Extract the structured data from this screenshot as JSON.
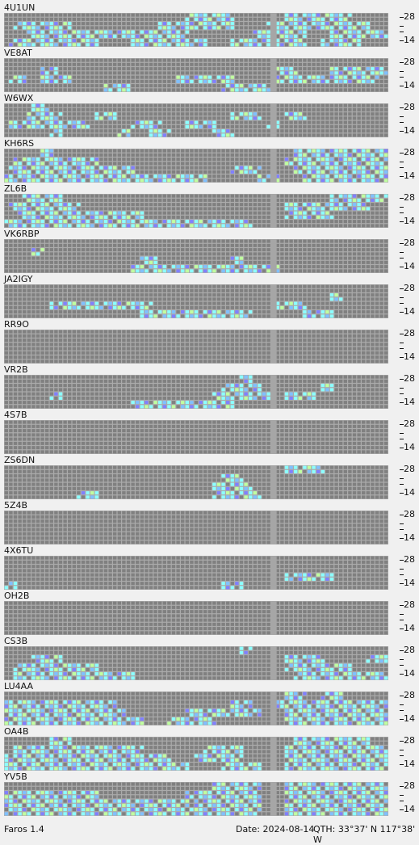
{
  "app_name": "Faros 1.4",
  "status": {
    "date_label": "Date:",
    "date_value": "2024-08-14",
    "qth_label": "QTH:",
    "qth_lat": "33°37' N",
    "qth_lon": "117°38' W"
  },
  "band_labels": {
    "top": "28",
    "bottom": "14"
  },
  "colors": {
    "empty_cell": "#808080",
    "gridline": "#ababab",
    "current_time_column": "#a6a6a6",
    "signal_strong": "#8cffff",
    "signal_medium": "#80c0ff",
    "signal_weak": "#8080ff",
    "signal_peak": "#c0ffa0"
  },
  "beacons": [
    {
      "callsign": "4U1UN",
      "activity": {
        "28": [
          [
            40,
            50
          ],
          [
            62,
            76
          ]
        ],
        "21": [
          [
            2,
            14
          ],
          [
            34,
            50
          ],
          [
            58,
            80
          ]
        ],
        "18": [
          [
            5,
            40
          ],
          [
            55,
            66
          ],
          [
            72,
            84
          ]
        ],
        "14": [
          [
            1,
            20
          ],
          [
            28,
            44
          ],
          [
            50,
            66
          ],
          [
            70,
            78
          ]
        ]
      }
    },
    {
      "callsign": "VE8AT",
      "activity": {
        "28": [],
        "21": [
          [
            8,
            11
          ],
          [
            60,
            64
          ],
          [
            72,
            84
          ]
        ],
        "18": [
          [
            1,
            4
          ],
          [
            8,
            14
          ],
          [
            38,
            50
          ],
          [
            60,
            82
          ]
        ],
        "14": [
          [
            22,
            27
          ],
          [
            48,
            58
          ]
        ]
      }
    },
    {
      "callsign": "W6WX",
      "activity": {
        "28": [
          [
            6,
            9
          ]
        ],
        "21": [
          [
            5,
            12
          ],
          [
            20,
            24
          ],
          [
            50,
            56
          ],
          [
            62,
            66
          ]
        ],
        "18": [
          [
            1,
            18
          ],
          [
            28,
            34
          ],
          [
            40,
            46
          ],
          [
            58,
            60
          ]
        ],
        "14": [
          [
            10,
            12
          ],
          [
            25,
            27
          ],
          [
            32,
            36
          ],
          [
            46,
            50
          ]
        ]
      }
    },
    {
      "callsign": "KH6RS",
      "activity": {
        "28": [
          [
            8,
            10
          ],
          [
            64,
            84
          ]
        ],
        "21": [
          [
            2,
            20
          ],
          [
            62,
            84
          ]
        ],
        "18": [
          [
            1,
            28
          ],
          [
            50,
            56
          ],
          [
            64,
            84
          ]
        ],
        "14": [
          [
            0,
            44
          ],
          [
            56,
            60
          ],
          [
            66,
            84
          ]
        ]
      }
    },
    {
      "callsign": "ZL6B",
      "activity": {
        "28": [
          [
            4,
            12
          ],
          [
            72,
            84
          ]
        ],
        "21": [
          [
            1,
            16
          ],
          [
            62,
            80
          ]
        ],
        "18": [
          [
            3,
            30
          ],
          [
            62,
            72
          ]
        ],
        "14": [
          [
            0,
            54
          ]
        ]
      }
    },
    {
      "callsign": "VK6RBP",
      "activity": {
        "28": [],
        "21": [
          [
            6,
            8
          ]
        ],
        "18": [
          [
            30,
            33
          ],
          [
            50,
            52
          ]
        ],
        "14": [
          [
            28,
            60
          ]
        ]
      }
    },
    {
      "callsign": "JA2IGY",
      "activity": {
        "28": [],
        "21": [
          [
            72,
            74
          ]
        ],
        "18": [
          [
            10,
            32
          ],
          [
            60,
            66
          ]
        ],
        "14": [
          [
            30,
            54
          ],
          [
            66,
            72
          ]
        ]
      }
    },
    {
      "callsign": "RR9O",
      "activity": {
        "28": [],
        "21": [],
        "18": [],
        "14": []
      }
    },
    {
      "callsign": "VR2B",
      "activity": {
        "28": [
          [
            52,
            54
          ]
        ],
        "21": [
          [
            48,
            56
          ],
          [
            70,
            72
          ]
        ],
        "18": [
          [
            10,
            12
          ],
          [
            46,
            58
          ],
          [
            62,
            68
          ]
        ],
        "14": [
          [
            28,
            50
          ]
        ]
      }
    },
    {
      "callsign": "4S7B",
      "activity": {
        "28": [],
        "21": [],
        "18": [],
        "14": []
      }
    },
    {
      "callsign": "ZS6DN",
      "activity": {
        "28": [
          [
            62,
            70
          ]
        ],
        "21": [
          [
            48,
            52
          ]
        ],
        "18": [
          [
            46,
            54
          ]
        ],
        "14": [
          [
            16,
            20
          ],
          [
            46,
            56
          ]
        ]
      }
    },
    {
      "callsign": "5Z4B",
      "activity": {
        "28": [],
        "21": [],
        "18": [],
        "14": []
      }
    },
    {
      "callsign": "4X6TU",
      "activity": {
        "28": [],
        "21": [],
        "18": [
          [
            62,
            72
          ]
        ],
        "14": [
          [
            0,
            2
          ],
          [
            48,
            52
          ]
        ]
      }
    },
    {
      "callsign": "OH2B",
      "activity": {
        "28": [],
        "21": [],
        "18": [],
        "14": []
      }
    },
    {
      "callsign": "CS3B",
      "activity": {
        "28": [
          [
            52,
            54
          ]
        ],
        "21": [
          [
            6,
            12
          ],
          [
            62,
            70
          ],
          [
            80,
            84
          ]
        ],
        "18": [
          [
            2,
            20
          ],
          [
            62,
            76
          ]
        ],
        "14": [
          [
            2,
            28
          ],
          [
            64,
            84
          ]
        ]
      }
    },
    {
      "callsign": "LU4AA",
      "activity": {
        "28": [
          [
            62,
            66
          ],
          [
            70,
            74
          ]
        ],
        "21": [
          [
            0,
            24
          ],
          [
            50,
            54
          ],
          [
            60,
            84
          ]
        ],
        "18": [
          [
            0,
            26
          ],
          [
            40,
            56
          ],
          [
            62,
            84
          ]
        ],
        "14": [
          [
            0,
            30
          ],
          [
            36,
            46
          ],
          [
            62,
            84
          ]
        ]
      }
    },
    {
      "callsign": "OA4B",
      "activity": {
        "28": [
          [
            10,
            14
          ],
          [
            64,
            80
          ]
        ],
        "21": [
          [
            2,
            30
          ],
          [
            44,
            52
          ],
          [
            62,
            84
          ]
        ],
        "18": [
          [
            0,
            36
          ],
          [
            42,
            52
          ],
          [
            62,
            84
          ]
        ],
        "14": [
          [
            0,
            40
          ],
          [
            48,
            56
          ],
          [
            62,
            84
          ]
        ]
      }
    },
    {
      "callsign": "YV5B",
      "activity": {
        "28": [
          [
            46,
            56
          ],
          [
            62,
            84
          ]
        ],
        "21": [
          [
            0,
            20
          ],
          [
            40,
            56
          ],
          [
            62,
            84
          ]
        ],
        "18": [
          [
            0,
            40
          ],
          [
            42,
            56
          ],
          [
            62,
            84
          ]
        ],
        "14": [
          [
            0,
            56
          ],
          [
            62,
            84
          ]
        ]
      }
    }
  ]
}
